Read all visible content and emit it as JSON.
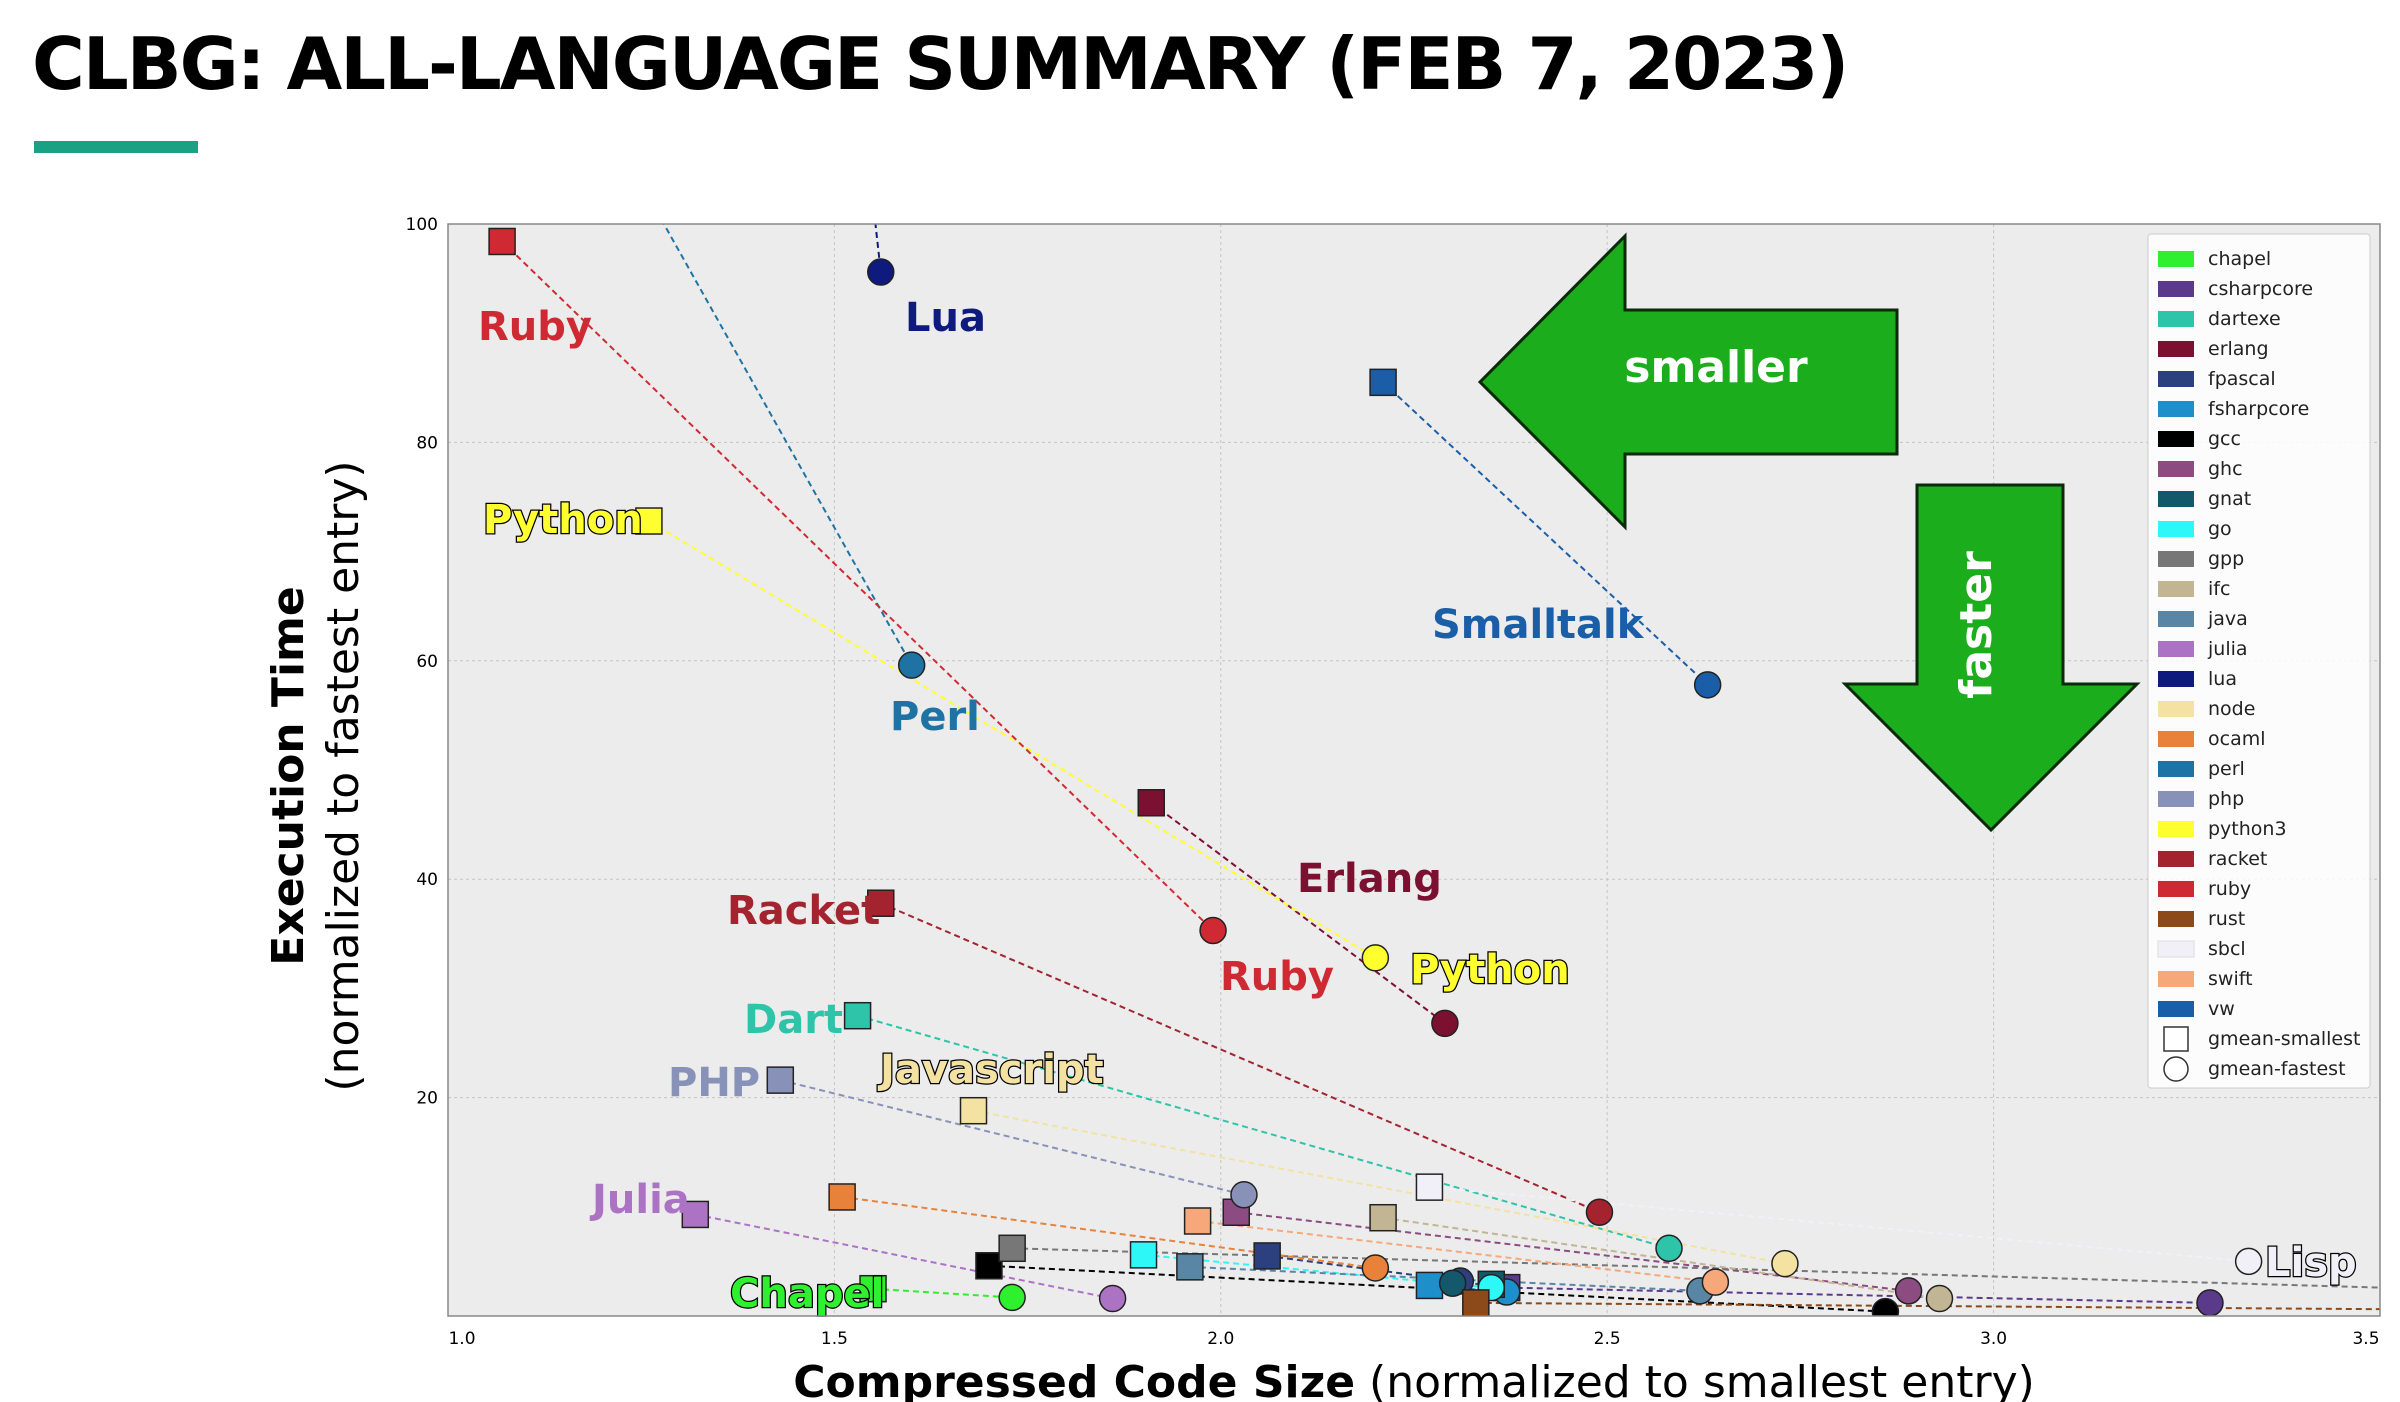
{
  "page": {
    "title": "CLBG: ALL-LANGUAGE SUMMARY (FEB 7, 2023)"
  },
  "colors": {
    "accent": "#1aa083",
    "plot_bg": "#ececec",
    "arrow_green": "#1cad1c"
  },
  "chart_data": {
    "type": "scatter",
    "xlabel_bold": "Compressed Code Size",
    "xlabel_rest": " (normalized to smallest entry)",
    "ylabel_bold": "Execution Time",
    "ylabel_rest": "(normalized to fastest entry)",
    "xlim": [
      1.0,
      3.5
    ],
    "ylim": [
      0,
      100
    ],
    "xticks": [
      1.0,
      1.5,
      2.0,
      2.5,
      3.0,
      3.5
    ],
    "xtick_labels": [
      "1.0",
      "1.5",
      "2.0",
      "2.5",
      "3.0",
      "3.5"
    ],
    "yticks": [
      20,
      40,
      60,
      80,
      100
    ],
    "ytick_labels": [
      "20",
      "40",
      "60",
      "80",
      "100"
    ],
    "grid": true,
    "legend_position": "top-right",
    "legend_marker_labels": {
      "smallest": "gmean-smallest",
      "fastest": "gmean-fastest"
    },
    "arrows": [
      {
        "label": "smaller",
        "direction": "left"
      },
      {
        "label": "faster",
        "direction": "down"
      }
    ],
    "series": [
      {
        "name": "chapel",
        "color": "#2ef02e",
        "smallest": [
          1.55,
          2.5
        ],
        "fastest": [
          1.73,
          1.7
        ],
        "label": "Chapel"
      },
      {
        "name": "csharpcore",
        "color": "#5b3a8c",
        "smallest": [
          2.37,
          2.6
        ],
        "fastest": [
          3.28,
          1.2
        ],
        "label": ""
      },
      {
        "name": "dartexe",
        "color": "#2ec4aa",
        "smallest": [
          1.53,
          27.5
        ],
        "fastest": [
          2.58,
          6.2
        ],
        "label": "Dart"
      },
      {
        "name": "erlang",
        "color": "#7c1030",
        "smallest": [
          1.91,
          47.0
        ],
        "fastest": [
          2.29,
          26.8
        ],
        "label": "Erlang"
      },
      {
        "name": "fpascal",
        "color": "#2c3f7e",
        "smallest": [
          2.06,
          5.5
        ],
        "fastest": [
          2.31,
          3.2
        ],
        "label": ""
      },
      {
        "name": "fsharpcore",
        "color": "#1f8fcc",
        "smallest": [
          2.27,
          2.8
        ],
        "fastest": [
          2.37,
          2.2
        ],
        "label": ""
      },
      {
        "name": "gcc",
        "color": "#000000",
        "smallest": [
          1.7,
          4.6
        ],
        "fastest": [
          2.86,
          0.4
        ],
        "label": ""
      },
      {
        "name": "ghc",
        "color": "#8c4c82",
        "smallest": [
          2.02,
          9.5
        ],
        "fastest": [
          2.89,
          2.3
        ],
        "label": ""
      },
      {
        "name": "gnat",
        "color": "#14596b",
        "smallest": [
          2.35,
          2.9
        ],
        "fastest": [
          2.3,
          3.0
        ],
        "label": ""
      },
      {
        "name": "go",
        "color": "#2ef7f7",
        "smallest": [
          1.9,
          5.6
        ],
        "fastest": [
          2.35,
          2.6
        ],
        "label": ""
      },
      {
        "name": "gpp",
        "color": "#777777",
        "smallest": [
          1.73,
          6.2
        ],
        "fastest": [
          3.55,
          2.5
        ],
        "label": ""
      },
      {
        "name": "ifc",
        "color": "#c2b593",
        "smallest": [
          2.21,
          9.0
        ],
        "fastest": [
          2.93,
          1.6
        ],
        "label": ""
      },
      {
        "name": "java",
        "color": "#5a86a6",
        "smallest": [
          1.96,
          4.5
        ],
        "fastest": [
          2.62,
          2.3
        ],
        "label": ""
      },
      {
        "name": "julia",
        "color": "#ac73c4",
        "smallest": [
          1.32,
          9.3
        ],
        "fastest": [
          1.86,
          1.6
        ],
        "label": "Julia"
      },
      {
        "name": "lua",
        "color": "#0e1a7e",
        "smallest": [
          1.55,
          102.0
        ],
        "fastest": [
          1.56,
          95.6
        ],
        "label": "Lua"
      },
      {
        "name": "node",
        "color": "#f3e2a2",
        "smallest": [
          1.68,
          18.8
        ],
        "fastest": [
          2.73,
          4.8
        ],
        "label": "Javascript"
      },
      {
        "name": "ocaml",
        "color": "#e8823a",
        "smallest": [
          1.51,
          10.9
        ],
        "fastest": [
          2.2,
          4.4
        ],
        "label": ""
      },
      {
        "name": "perl",
        "color": "#1f73a4",
        "smallest": [
          1.2,
          110.0
        ],
        "fastest": [
          1.6,
          59.6
        ],
        "label": "Perl"
      },
      {
        "name": "php",
        "color": "#8892b8",
        "smallest": [
          1.43,
          21.6
        ],
        "fastest": [
          2.03,
          11.1
        ],
        "label": "PHP"
      },
      {
        "name": "python3",
        "color": "#ffff30",
        "smallest": [
          1.26,
          72.8
        ],
        "fastest": [
          2.2,
          32.8
        ],
        "label": "Python"
      },
      {
        "name": "racket",
        "color": "#a3232e",
        "smallest": [
          1.56,
          37.8
        ],
        "fastest": [
          2.49,
          9.5
        ],
        "label": "Racket"
      },
      {
        "name": "ruby",
        "color": "#cf2a33",
        "smallest": [
          1.07,
          98.4
        ],
        "fastest": [
          1.99,
          35.3
        ],
        "label": "Ruby"
      },
      {
        "name": "rust",
        "color": "#8c4a1a",
        "smallest": [
          2.33,
          1.2
        ],
        "fastest": [
          3.55,
          0.6
        ],
        "label": ""
      },
      {
        "name": "sbcl",
        "color": "#f1f0f8",
        "smallest": [
          2.27,
          11.8
        ],
        "fastest": [
          3.33,
          5.0
        ],
        "label": "Lisp"
      },
      {
        "name": "swift",
        "color": "#f6a87a",
        "smallest": [
          1.97,
          8.7
        ],
        "fastest": [
          2.64,
          3.1
        ],
        "label": ""
      },
      {
        "name": "vw",
        "color": "#1a5ea8",
        "smallest": [
          2.21,
          85.5
        ],
        "fastest": [
          2.63,
          57.8
        ],
        "label": "Smalltalk"
      }
    ]
  }
}
